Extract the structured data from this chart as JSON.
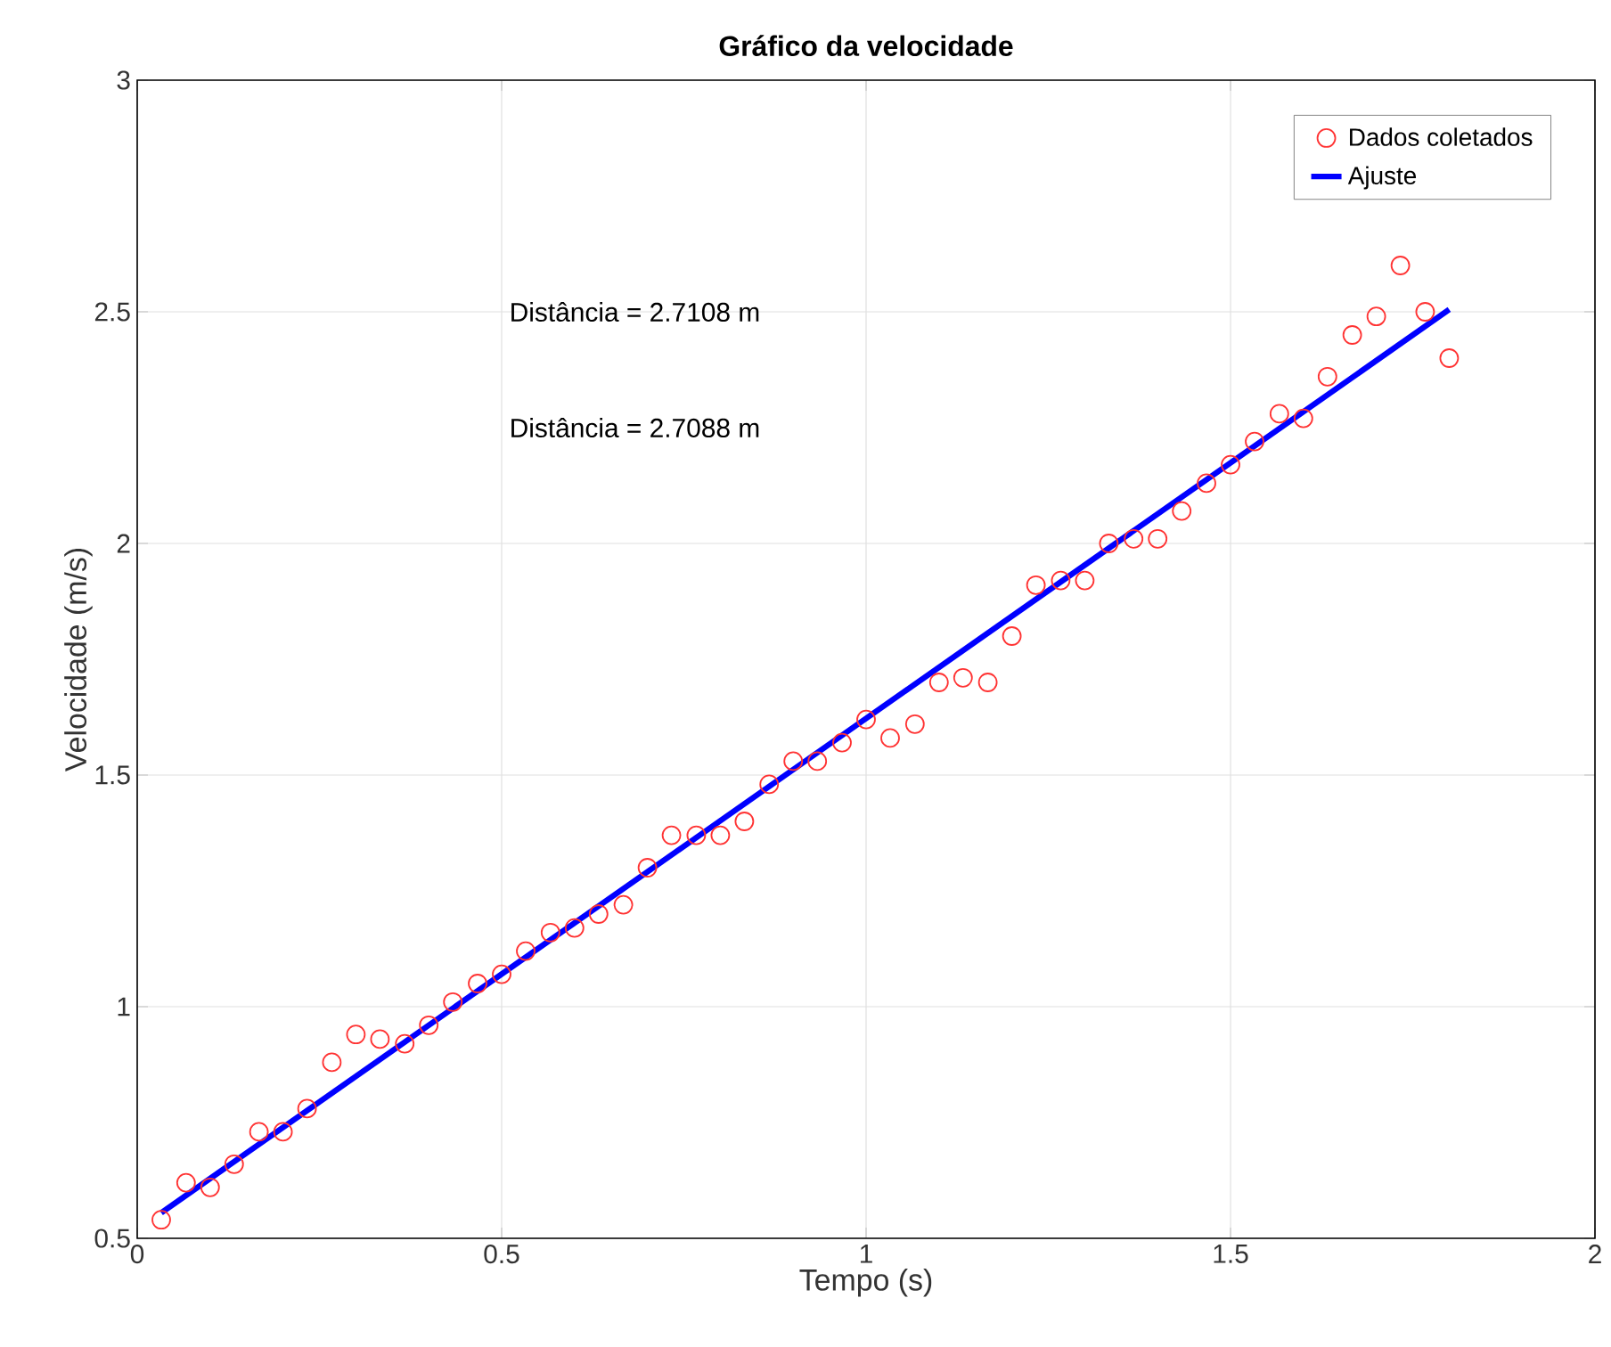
{
  "chart_data": {
    "type": "scatter",
    "title": "Gráfico da velocidade",
    "xlabel": "Tempo (s)",
    "ylabel": "Velocidade (m/s)",
    "xlim": [
      0,
      2
    ],
    "ylim": [
      0.5,
      3
    ],
    "xticks": [
      0,
      0.5,
      1,
      1.5,
      2
    ],
    "yticks": [
      0.5,
      1,
      1.5,
      2,
      2.5,
      3
    ],
    "grid": true,
    "legend": "top right",
    "annotations": [
      "Distância = 2.7108 m",
      "Distância = 2.7088 m"
    ],
    "series": [
      {
        "name": "Dados coletados",
        "marker": "circle",
        "color": "#ff3333",
        "x": [
          0.033,
          0.067,
          0.1,
          0.133,
          0.167,
          0.2,
          0.233,
          0.267,
          0.3,
          0.333,
          0.367,
          0.4,
          0.433,
          0.467,
          0.5,
          0.533,
          0.567,
          0.6,
          0.633,
          0.667,
          0.7,
          0.733,
          0.767,
          0.8,
          0.833,
          0.867,
          0.9,
          0.933,
          0.967,
          1.0,
          1.033,
          1.067,
          1.1,
          1.133,
          1.167,
          1.2,
          1.233,
          1.267,
          1.3,
          1.333,
          1.367,
          1.4,
          1.433,
          1.467,
          1.5,
          1.533,
          1.567,
          1.6,
          1.633,
          1.667,
          1.7,
          1.733,
          1.767,
          1.8
        ],
        "values": [
          0.54,
          0.62,
          0.61,
          0.66,
          0.73,
          0.73,
          0.78,
          0.88,
          0.94,
          0.93,
          0.92,
          0.96,
          1.01,
          1.05,
          1.07,
          1.12,
          1.16,
          1.17,
          1.2,
          1.22,
          1.3,
          1.37,
          1.37,
          1.37,
          1.4,
          1.48,
          1.53,
          1.53,
          1.57,
          1.62,
          1.58,
          1.61,
          1.7,
          1.71,
          1.7,
          1.8,
          1.91,
          1.92,
          1.92,
          2.0,
          2.01,
          2.01,
          2.07,
          2.13,
          2.17,
          2.22,
          2.28,
          2.27,
          2.36,
          2.45,
          2.49,
          2.6,
          2.5,
          2.4
        ]
      },
      {
        "name": "Ajuste",
        "type": "line",
        "marker": "none",
        "line_style": "solid",
        "color": "#0000ff",
        "x": [
          0.033,
          1.8
        ],
        "values": [
          0.555,
          2.505
        ]
      }
    ]
  }
}
